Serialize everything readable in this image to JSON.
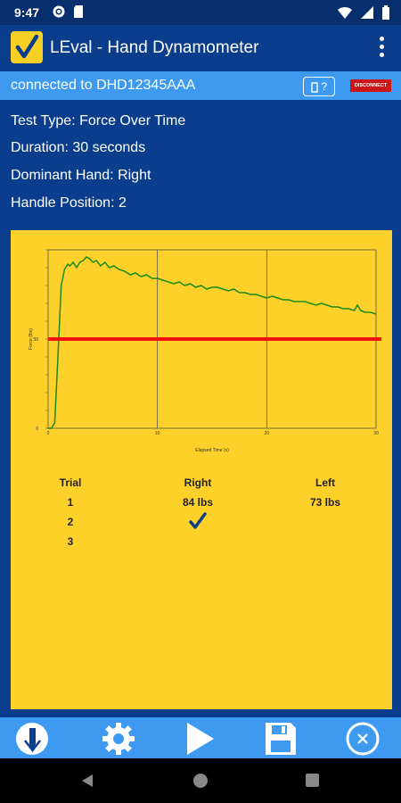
{
  "status": {
    "time": "9:47"
  },
  "app": {
    "title": "LEval - Hand Dynamometer"
  },
  "connection": {
    "text": "connected to DHD12345AAA",
    "help_label": "?",
    "disconnect_label": "DISCONNECT"
  },
  "info": {
    "test_type": "Test Type: Force Over Time",
    "duration": "Duration: 30 seconds",
    "dominant_hand": "Dominant Hand: Right",
    "handle_position": "Handle Position: 2"
  },
  "chart_data": {
    "type": "line",
    "xlabel": "Elapsed Time (s)",
    "ylabel": "Force (lbs)",
    "xlim": [
      0,
      30
    ],
    "ylim": [
      0,
      100
    ],
    "x_ticks": [
      0,
      10,
      20,
      30
    ],
    "y_ticks": [
      0,
      50
    ],
    "grid": true,
    "threshold": 50,
    "series": [
      {
        "x": [
          0,
          0.3,
          0.6,
          0.9,
          1.2,
          1.5,
          1.8,
          2,
          2.3,
          2.6,
          2.9,
          3.2,
          3.5,
          3.8,
          4.1,
          4.4,
          4.8,
          5.2,
          5.6,
          6,
          6.5,
          7,
          7.5,
          8,
          8.5,
          9,
          9.5,
          10,
          10.5,
          11,
          11.5,
          12,
          12.5,
          13,
          13.5,
          14,
          14.5,
          15,
          15.5,
          16,
          16.5,
          17,
          17.5,
          18,
          18.5,
          19,
          19.5,
          20,
          20.5,
          21,
          21.5,
          22,
          22.5,
          23,
          23.5,
          24,
          24.5,
          25,
          25.5,
          26,
          26.5,
          27,
          27.5,
          28,
          28.3,
          28.6,
          29,
          29.5,
          30
        ],
        "y": [
          0,
          0,
          3,
          40,
          80,
          89,
          92,
          91,
          93,
          90,
          93,
          94,
          96,
          95,
          93,
          94,
          91,
          93,
          90,
          91,
          89,
          88,
          86,
          87,
          85,
          86,
          84,
          84,
          83,
          82,
          81,
          82,
          80,
          81,
          79,
          80,
          78,
          79,
          79,
          78,
          77,
          78,
          76,
          76,
          75,
          75,
          74,
          73,
          74,
          73,
          72,
          72,
          71,
          71,
          71,
          70,
          69,
          70,
          69,
          68,
          68,
          67,
          67,
          66,
          69,
          66,
          65,
          65,
          64
        ]
      }
    ]
  },
  "table": {
    "headers": [
      "Trial",
      "Right",
      "Left"
    ],
    "rows": [
      {
        "trial": "1",
        "right": "84 lbs",
        "left": "73 lbs"
      },
      {
        "trial": "2",
        "right": "",
        "left": ""
      },
      {
        "trial": "3",
        "right": "",
        "left": ""
      }
    ]
  }
}
